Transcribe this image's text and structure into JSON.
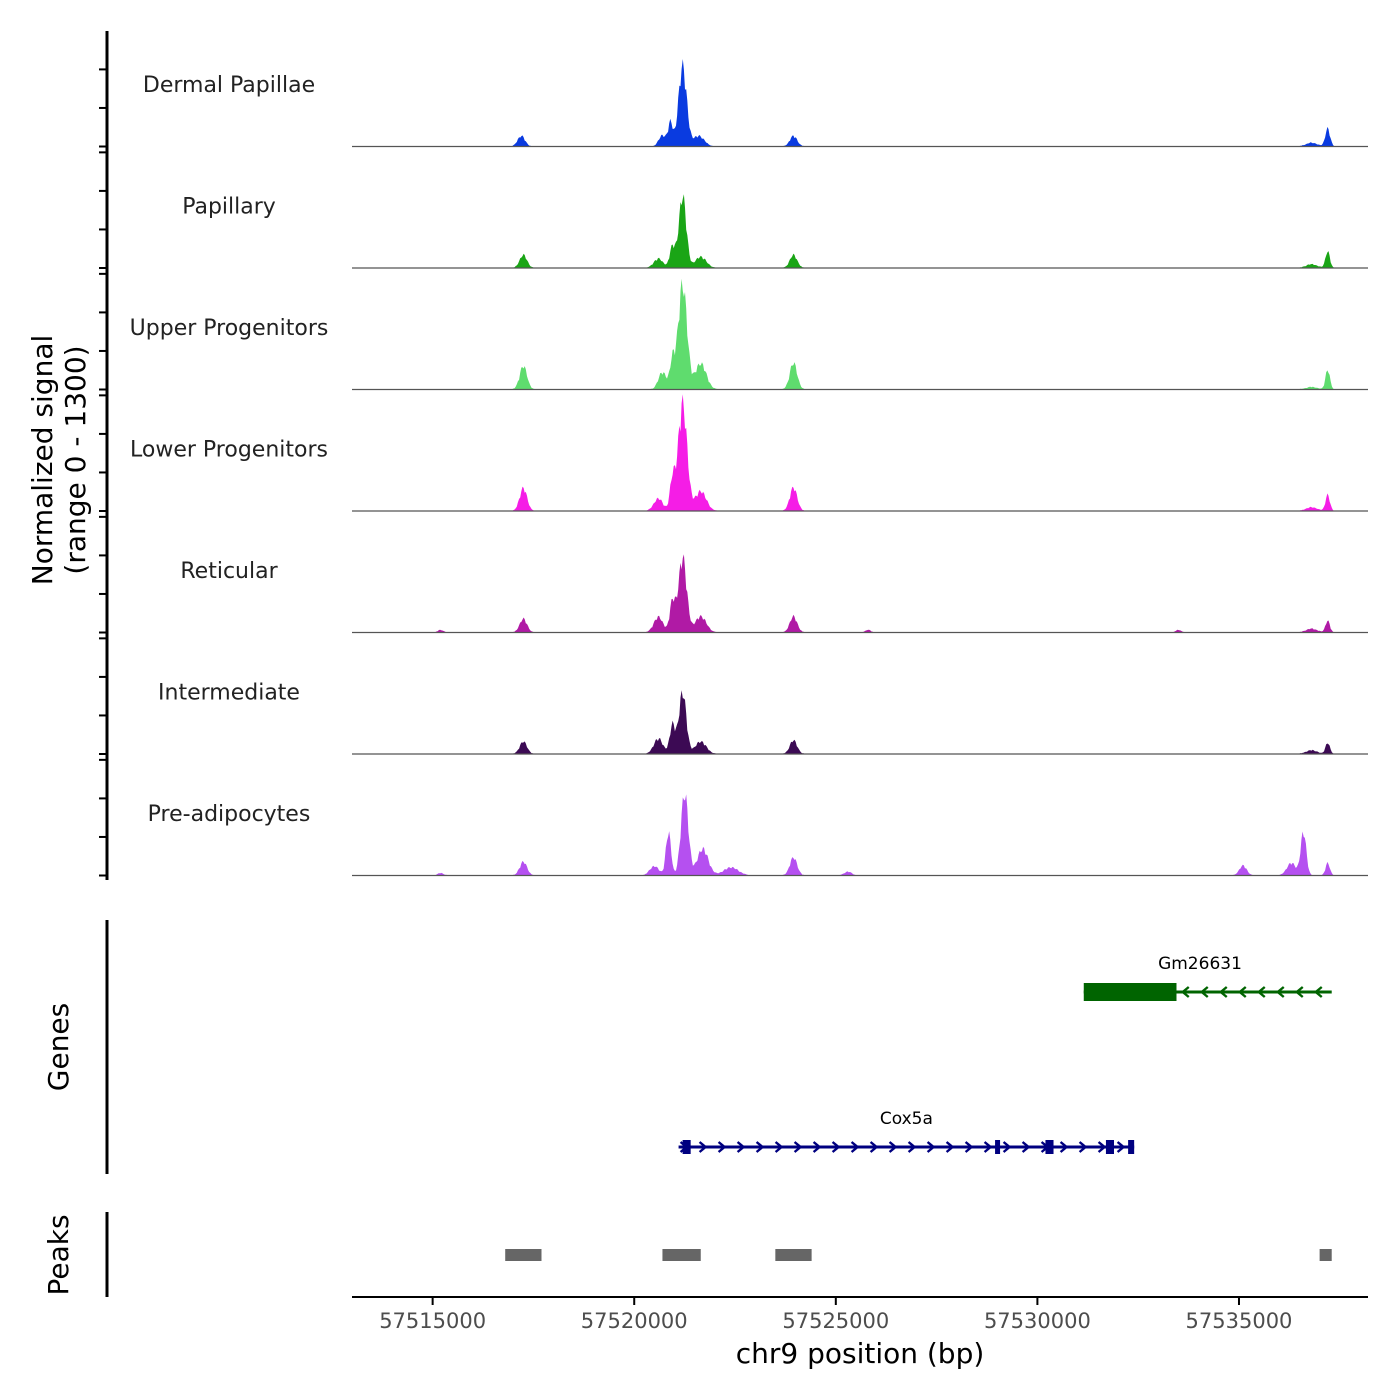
{
  "chart_data": {
    "type": "area",
    "title": "",
    "xlabel": "chr9 position (bp)",
    "ylabel_line1": "Normalized signal",
    "ylabel_line2": "(range 0 - 1300)",
    "xlim": [
      57513000,
      57538200
    ],
    "ylim": [
      0,
      1300
    ],
    "x_ticks": [
      57515000,
      57520000,
      57525000,
      57530000,
      57535000
    ],
    "x_tick_labels": [
      "57515000",
      "57520000",
      "57525000",
      "57530000",
      "57535000"
    ],
    "series": [
      {
        "name": "Dermal Papillae",
        "color": "#0a3be0",
        "peaks": [
          [
            57517200,
            170,
            200
          ],
          [
            57520700,
            180,
            200
          ],
          [
            57520900,
            380,
            130
          ],
          [
            57521200,
            1300,
            220
          ],
          [
            57521600,
            170,
            300
          ],
          [
            57523950,
            170,
            200
          ],
          [
            57536800,
            60,
            300
          ],
          [
            57537200,
            290,
            130
          ]
        ]
      },
      {
        "name": "Papillary",
        "color": "#1aa516",
        "peaks": [
          [
            57517250,
            210,
            200
          ],
          [
            57520600,
            150,
            250
          ],
          [
            57520950,
            350,
            150
          ],
          [
            57521200,
            1170,
            200
          ],
          [
            57521650,
            180,
            300
          ],
          [
            57523950,
            210,
            200
          ],
          [
            57536800,
            60,
            300
          ],
          [
            57537200,
            270,
            120
          ]
        ]
      },
      {
        "name": "Upper Progenitors",
        "color": "#5fdc6e",
        "peaks": [
          [
            57517250,
            380,
            200
          ],
          [
            57520700,
            280,
            220
          ],
          [
            57520950,
            450,
            140
          ],
          [
            57521200,
            1700,
            240
          ],
          [
            57521650,
            420,
            300
          ],
          [
            57523950,
            430,
            200
          ],
          [
            57536800,
            40,
            300
          ],
          [
            57537200,
            320,
            120
          ]
        ]
      },
      {
        "name": "Lower Progenitors",
        "color": "#f51de6",
        "peaks": [
          [
            57517250,
            370,
            200
          ],
          [
            57520600,
            200,
            250
          ],
          [
            57520950,
            500,
            140
          ],
          [
            57521200,
            1750,
            240
          ],
          [
            57521650,
            320,
            300
          ],
          [
            57523950,
            380,
            200
          ],
          [
            57536800,
            60,
            300
          ],
          [
            57537200,
            260,
            120
          ]
        ]
      },
      {
        "name": "Reticular",
        "color": "#b01aa5",
        "peaks": [
          [
            57515200,
            40,
            150
          ],
          [
            57517250,
            220,
            200
          ],
          [
            57520600,
            250,
            250
          ],
          [
            57520950,
            500,
            150
          ],
          [
            57521200,
            1220,
            220
          ],
          [
            57521650,
            260,
            300
          ],
          [
            57523950,
            260,
            200
          ],
          [
            57525800,
            40,
            150
          ],
          [
            57533500,
            40,
            150
          ],
          [
            57536800,
            60,
            300
          ],
          [
            57537200,
            190,
            120
          ]
        ]
      },
      {
        "name": "Intermediate",
        "color": "#3c0a54",
        "peaks": [
          [
            57517250,
            200,
            200
          ],
          [
            57520600,
            250,
            250
          ],
          [
            57520950,
            470,
            150
          ],
          [
            57521200,
            1000,
            200
          ],
          [
            57521650,
            200,
            300
          ],
          [
            57523950,
            220,
            200
          ],
          [
            57536800,
            60,
            300
          ],
          [
            57537200,
            180,
            120
          ]
        ]
      },
      {
        "name": "Pre-adipocytes",
        "color": "#b550f0",
        "peaks": [
          [
            57515200,
            40,
            150
          ],
          [
            57517250,
            220,
            200
          ],
          [
            57520500,
            150,
            250
          ],
          [
            57520850,
            700,
            140
          ],
          [
            57521250,
            1330,
            200
          ],
          [
            57521700,
            430,
            300
          ],
          [
            57522400,
            130,
            400
          ],
          [
            57523950,
            290,
            200
          ],
          [
            57525300,
            60,
            200
          ],
          [
            57535100,
            160,
            200
          ],
          [
            57536300,
            200,
            250
          ],
          [
            57536600,
            700,
            150
          ],
          [
            57537200,
            200,
            120
          ]
        ]
      }
    ],
    "genes": [
      {
        "name": "Gm26631",
        "strand": "-",
        "color": "#006400",
        "start": 57531150,
        "end": 57537300,
        "exons": [
          [
            57531150,
            57533450
          ]
        ]
      },
      {
        "name": "Cox5a",
        "strand": "+",
        "color": "#000080",
        "start": 57521100,
        "end": 57532400,
        "exons": [
          [
            57521200,
            57521400
          ],
          [
            57528950,
            57529050
          ],
          [
            57530200,
            57530400
          ],
          [
            57531700,
            57531900
          ],
          [
            57532250,
            57532400
          ]
        ]
      }
    ],
    "peaks_track": {
      "label": "Peaks",
      "color": "#666666",
      "regions": [
        [
          57516800,
          57517700
        ],
        [
          57520700,
          57521650
        ],
        [
          57523500,
          57524400
        ],
        [
          57537000,
          57537300
        ]
      ]
    },
    "genes_track_label": "Genes"
  }
}
